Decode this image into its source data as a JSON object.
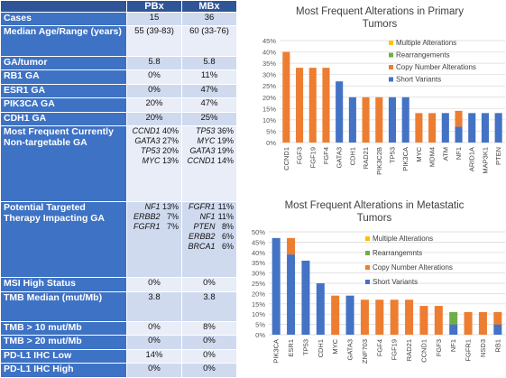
{
  "table": {
    "columns": [
      "",
      "PBx",
      "MBx"
    ],
    "rows": [
      {
        "label": "Cases",
        "pbx": "15",
        "mbx": "36"
      },
      {
        "label": "Median Age/Range (years)",
        "pbx": "55 (39-83)",
        "mbx": "60 (33-76)"
      },
      {
        "label": "GA/tumor",
        "pbx": "5.8",
        "mbx": "5.8"
      },
      {
        "label": "RB1 GA",
        "pbx": "0%",
        "mbx": "11%"
      },
      {
        "label": "ESR1 GA",
        "pbx": "0%",
        "mbx": "47%"
      },
      {
        "label": "PIK3CA GA",
        "pbx": "20%",
        "mbx": "47%"
      },
      {
        "label": "CDH1 GA",
        "pbx": "20%",
        "mbx": "25%"
      },
      {
        "label": "Most Frequent Currently Non-targetable GA",
        "pbx_list": [
          {
            "g": "CCND1",
            "p": "40%"
          },
          {
            "g": "GATA3",
            "p": "27%"
          },
          {
            "g": "TP53",
            "p": "20%"
          },
          {
            "g": "MYC",
            "p": "13%"
          }
        ],
        "mbx_list": [
          {
            "g": "TP53",
            "p": "36%"
          },
          {
            "g": "MYC",
            "p": "19%"
          },
          {
            "g": "GATA3",
            "p": "19%"
          },
          {
            "g": "CCND1",
            "p": "14%"
          }
        ]
      },
      {
        "label": "Potential Targeted Therapy Impacting GA",
        "pbx_list": [
          {
            "g": "NF1",
            "p": "13%"
          },
          {
            "g": "ERBB2",
            "p": "7%"
          },
          {
            "g": "FGFR1",
            "p": "7%"
          }
        ],
        "mbx_list": [
          {
            "g": "FGFR1",
            "p": "11%"
          },
          {
            "g": "NF1",
            "p": "11%"
          },
          {
            "g": "PTEN",
            "p": "8%"
          },
          {
            "g": "ERBB2",
            "p": "6%"
          },
          {
            "g": "BRCA1",
            "p": "6%"
          }
        ]
      },
      {
        "label": "MSI High Status",
        "pbx": "0%",
        "mbx": "0%"
      },
      {
        "label": "TMB Median (mut/Mb)",
        "pbx": "3.8",
        "mbx": "3.8"
      },
      {
        "label": "TMB > 10 mut/Mb",
        "pbx": "0%",
        "mbx": "8%"
      },
      {
        "label": "TMB > 20 mut/Mb",
        "pbx": "0%",
        "mbx": "0%"
      },
      {
        "label": "PD-L1 IHC Low",
        "pbx": "14%",
        "mbx": "0%"
      },
      {
        "label": "PD-L1 IHC High",
        "pbx": "0%",
        "mbx": "0%"
      }
    ]
  },
  "chart_data": [
    {
      "type": "bar",
      "stacked": true,
      "title": "Most Frequent Alterations in Primary Tumors",
      "categories": [
        "CCND1",
        "FGF3",
        "FGF19",
        "FGF4",
        "GATA3",
        "CDH1",
        "RAD21",
        "PIK3C2B",
        "TP53",
        "PIK3CA",
        "MYC",
        "MDM4",
        "ATM",
        "NF1",
        "ARID1A",
        "MAP3K1",
        "PTEN"
      ],
      "series": [
        {
          "name": "Multiple Alterations",
          "color": "#ffc000",
          "values": [
            0,
            0,
            0,
            0,
            0,
            0,
            0,
            0,
            0,
            0,
            0,
            0,
            0,
            0,
            0,
            0,
            0
          ]
        },
        {
          "name": "Rearrangements",
          "color": "#70ad47",
          "values": [
            0,
            0,
            0,
            0,
            0,
            0,
            0,
            0,
            0,
            0,
            0,
            0,
            0,
            0,
            0,
            0,
            0
          ]
        },
        {
          "name": "Copy Number Alterations",
          "color": "#ed7d31",
          "values": [
            40,
            33,
            33,
            33,
            0,
            0,
            20,
            20,
            0,
            0,
            13,
            13,
            0,
            7,
            0,
            0,
            0
          ]
        },
        {
          "name": "Short Variants",
          "color": "#4472c4",
          "values": [
            0,
            0,
            0,
            0,
            27,
            20,
            0,
            0,
            20,
            20,
            0,
            0,
            13,
            7,
            13,
            13,
            13
          ]
        }
      ],
      "y_ticks": [
        "0%",
        "5%",
        "10%",
        "15%",
        "20%",
        "25%",
        "30%",
        "35%",
        "40%",
        "45%"
      ],
      "ylim": [
        0,
        45
      ],
      "legend_position": "right"
    },
    {
      "type": "bar",
      "stacked": true,
      "title": "Most Frequent Alterations in Metastatic Tumors",
      "categories": [
        "PIK3CA",
        "ESR1",
        "TP53",
        "CDH1",
        "MYC",
        "GATA3",
        "ZNF703",
        "FGF4",
        "FGF19",
        "RAD21",
        "CCND1",
        "FGF3",
        "NF1",
        "FGFR1",
        "NSD3",
        "RB1"
      ],
      "series": [
        {
          "name": "Multiple Alterations",
          "color": "#ffc000",
          "values": [
            0,
            0,
            0,
            0,
            0,
            0,
            0,
            0,
            0,
            0,
            0,
            0,
            0,
            0,
            0,
            0
          ]
        },
        {
          "name": "Rearrangemnts",
          "color": "#70ad47",
          "values": [
            0,
            0,
            0,
            0,
            0,
            0,
            0,
            0,
            0,
            0,
            0,
            0,
            6,
            0,
            0,
            0
          ]
        },
        {
          "name": "Copy Number Alterations",
          "color": "#ed7d31",
          "values": [
            0,
            8,
            0,
            0,
            19,
            0,
            17,
            17,
            17,
            17,
            14,
            14,
            0,
            11,
            11,
            6
          ]
        },
        {
          "name": "Short Variants",
          "color": "#4472c4",
          "values": [
            47,
            39,
            36,
            25,
            0,
            19,
            0,
            0,
            0,
            0,
            0,
            0,
            5,
            0,
            0,
            5
          ]
        }
      ],
      "y_ticks": [
        "0%",
        "5%",
        "10%",
        "15%",
        "20%",
        "25%",
        "30%",
        "35%",
        "40%",
        "45%",
        "50%"
      ],
      "ylim": [
        0,
        50
      ],
      "legend_position": "right"
    }
  ]
}
